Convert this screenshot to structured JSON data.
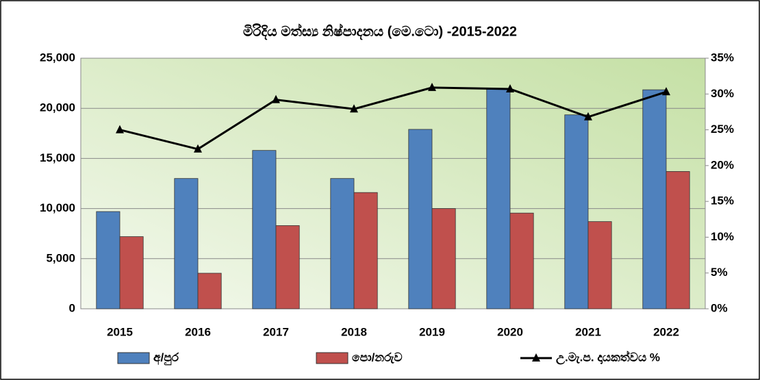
{
  "chart_data": {
    "type": "bar",
    "title": "මිරිදිය මත්ස්‍ය නිෂ්පාදනය (මෙ.ටො) -2015-2022",
    "categories": [
      "2015",
      "2016",
      "2017",
      "2018",
      "2019",
      "2020",
      "2021",
      "2022"
    ],
    "series": [
      {
        "name": "අ/පුර",
        "color": "#4f81bd",
        "type": "bar",
        "values": [
          9700,
          13000,
          15800,
          13000,
          17900,
          21900,
          19350,
          21850
        ]
      },
      {
        "name": "පො/නරුව",
        "color": "#c0504d",
        "type": "bar",
        "values": [
          7200,
          3550,
          8300,
          11600,
          10000,
          9550,
          8700,
          13700
        ]
      },
      {
        "name": "උ.මැ.ප. දායකත්වය %",
        "color": "#000000",
        "type": "line",
        "axis": "y2",
        "values": [
          25,
          22.3,
          29.2,
          27.9,
          30.9,
          30.7,
          26.8,
          30.3
        ]
      }
    ],
    "ylim": [
      0,
      25000
    ],
    "yticks": [
      0,
      {
        "value": 5000,
        "label": "5,000"
      },
      {
        "value": 10000,
        "label": "10,000"
      },
      {
        "value": 15000,
        "label": "15,000"
      },
      {
        "value": 20000,
        "label": "20,000"
      },
      {
        "value": 25000,
        "label": "25,000"
      }
    ],
    "y2lim": [
      0,
      35
    ],
    "y2ticks": [
      {
        "value": 0,
        "label": "0%"
      },
      {
        "value": 5,
        "label": "5%"
      },
      {
        "value": 10,
        "label": "10%"
      },
      {
        "value": 15,
        "label": "15%"
      },
      {
        "value": 20,
        "label": "20%"
      },
      {
        "value": 25,
        "label": "25%"
      },
      {
        "value": 30,
        "label": "30%"
      },
      {
        "value": 35,
        "label": "35%"
      }
    ],
    "grid": true,
    "legend": "bottom"
  }
}
